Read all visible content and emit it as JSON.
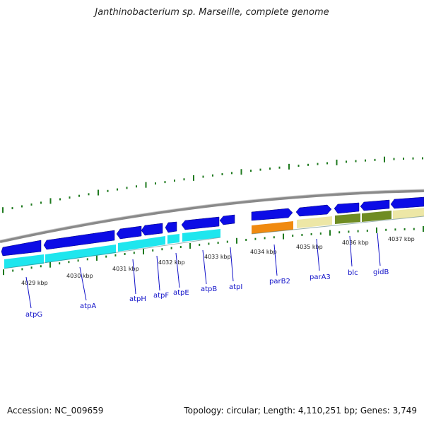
{
  "title": "Janthinobacterium sp. Marseille, complete genome",
  "footer": {
    "accession": "Accession: NC_009659",
    "stats": "Topology: circular; Length: 4,110,251 bp; Genes: 3,749"
  },
  "colors": {
    "cds_blue": "#0c0ce6",
    "gene_cyan": "#1ee6ee",
    "orange": "#f08a10",
    "khaki": "#ede7a6",
    "olive": "#6f8c23",
    "tick_green": "#1f7a1f",
    "backbone": "#8a8a8a",
    "label_blue": "#1010c8"
  },
  "kbp_ticks": [
    "4029 kbp",
    "4030 kbp",
    "4031 kbp",
    "4032 kbp",
    "4033 kbp",
    "4034 kbp",
    "4035 kbp",
    "4036 kbp",
    "4037 kbp"
  ],
  "genes": [
    "atpG",
    "atpA",
    "atpH",
    "atpF",
    "atpE",
    "atpB",
    "atpI",
    "parB2",
    "parA3",
    "blc",
    "gidB"
  ]
}
